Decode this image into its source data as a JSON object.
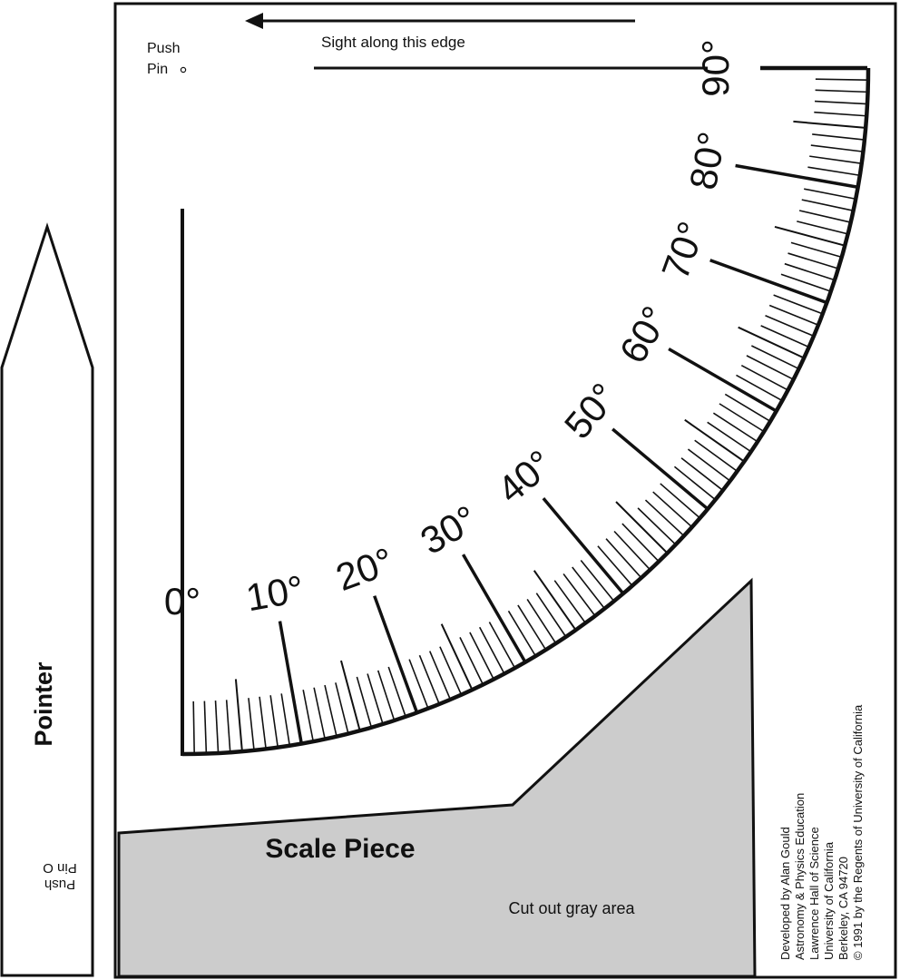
{
  "pointer": {
    "label": "Pointer",
    "pushpin_line1": "Push",
    "pushpin_line2": "Pin O"
  },
  "scale_piece": {
    "pushpin_line1": "Push",
    "pushpin_line2": "Pin",
    "sight_label": "Sight along this edge",
    "title": "Scale Piece",
    "cut_label": "Cut out gray area",
    "gray_fill": "#cccccc",
    "credits": [
      "Developed by Alan Gould",
      "Astronomy & Physics Education",
      "Lawrence Hall of Science",
      "University of California",
      "Berkeley, CA 94720",
      "© 1991 by the Regents of University of California"
    ]
  },
  "scale": {
    "min_deg": 0,
    "max_deg": 90,
    "minor_step_deg": 1,
    "mid_step_deg": 5,
    "major_step_deg": 10,
    "degree_labels": [
      "0°",
      "10°",
      "20°",
      "30°",
      "40°",
      "50°",
      "60°",
      "70°",
      "80°",
      "90°"
    ]
  }
}
